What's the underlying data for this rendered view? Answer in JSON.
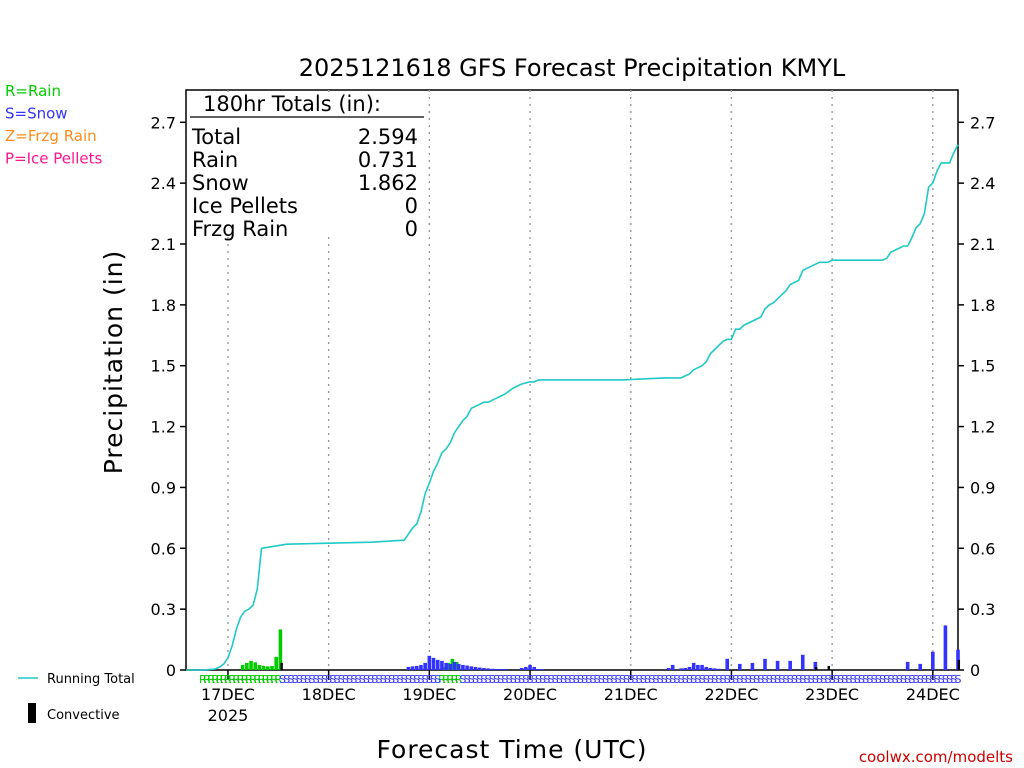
{
  "chart_data": {
    "type": "bar+line",
    "title": "2025121618 GFS Forecast Precipitation KMYL",
    "xlabel": "Forecast Time (UTC)",
    "ylabel": "Precipitation (in)",
    "ylim": [
      0,
      2.8
    ],
    "yticks": [
      0,
      0.3,
      0.6,
      0.9,
      1.2,
      1.5,
      1.8,
      2.1,
      2.4,
      2.7
    ],
    "ytick_labels": [
      "0",
      "0.3",
      "0.6",
      "0.9",
      "1.2",
      "1.5",
      "1.8",
      "2.1",
      "2.4",
      "2.7"
    ],
    "x_range_hours": [
      -4,
      180
    ],
    "x_ticks": [
      {
        "hour": 6,
        "label": "17DEC"
      },
      {
        "hour": 30,
        "label": "18DEC"
      },
      {
        "hour": 54,
        "label": "19DEC"
      },
      {
        "hour": 78,
        "label": "20DEC"
      },
      {
        "hour": 102,
        "label": "21DEC"
      },
      {
        "hour": 126,
        "label": "22DEC"
      },
      {
        "hour": 150,
        "label": "23DEC"
      },
      {
        "hour": 174,
        "label": "24DEC"
      }
    ],
    "year_label": "2025",
    "legend_types": [
      {
        "label": "R=Rain",
        "color": "#00cc00"
      },
      {
        "label": "S=Snow",
        "color": "#3333ff"
      },
      {
        "label": "Z=Frzg Rain",
        "color": "#ff8c1a"
      },
      {
        "label": "P=Ice Pellets",
        "color": "#ff1493"
      }
    ],
    "legend_series": [
      {
        "label": "Running Total",
        "color": "#20c8c8"
      },
      {
        "label": "Convective",
        "color": "#000000"
      }
    ],
    "totals": {
      "header": "180hr Totals (in):",
      "rows": [
        {
          "label": "Total",
          "value": "2.594"
        },
        {
          "label": "Rain",
          "value": "0.731"
        },
        {
          "label": "Snow",
          "value": "1.862"
        },
        {
          "label": "Ice Pellets",
          "value": "0"
        },
        {
          "label": "Frzg Rain",
          "value": "0"
        }
      ]
    },
    "running_total": {
      "color": "#20c8c8",
      "hours": [
        -4,
        0,
        3,
        4,
        5,
        6,
        7,
        8,
        9,
        10,
        11,
        12,
        13,
        14,
        20,
        30,
        40,
        48,
        50,
        51,
        52,
        53,
        54,
        55,
        56,
        57,
        58,
        59,
        60,
        61,
        62,
        63,
        64,
        65,
        66,
        67,
        68,
        69,
        70,
        71,
        72,
        74,
        76,
        78,
        79,
        80,
        82,
        90,
        100,
        110,
        114,
        116,
        117,
        118,
        119,
        120,
        121,
        122,
        123,
        124,
        125,
        126,
        127,
        128,
        129,
        130,
        131,
        132,
        133,
        134,
        135,
        136,
        137,
        138,
        139,
        140,
        141,
        142,
        143,
        144,
        145,
        146,
        147,
        148,
        149,
        150,
        152,
        155,
        160,
        162,
        163,
        164,
        165,
        166,
        167,
        168,
        169,
        170,
        171,
        172,
        173,
        174,
        175,
        176,
        177,
        178,
        179,
        180
      ],
      "values": [
        0.0,
        0.0,
        0.005,
        0.015,
        0.03,
        0.06,
        0.12,
        0.2,
        0.26,
        0.29,
        0.3,
        0.32,
        0.4,
        0.6,
        0.62,
        0.625,
        0.63,
        0.64,
        0.7,
        0.72,
        0.78,
        0.87,
        0.92,
        0.98,
        1.02,
        1.07,
        1.09,
        1.12,
        1.17,
        1.2,
        1.23,
        1.25,
        1.29,
        1.3,
        1.31,
        1.32,
        1.32,
        1.33,
        1.34,
        1.35,
        1.36,
        1.39,
        1.41,
        1.42,
        1.42,
        1.43,
        1.43,
        1.43,
        1.43,
        1.44,
        1.44,
        1.46,
        1.48,
        1.49,
        1.5,
        1.52,
        1.56,
        1.58,
        1.6,
        1.62,
        1.63,
        1.63,
        1.68,
        1.68,
        1.7,
        1.71,
        1.72,
        1.73,
        1.74,
        1.78,
        1.8,
        1.81,
        1.83,
        1.85,
        1.87,
        1.9,
        1.91,
        1.92,
        1.97,
        1.98,
        1.99,
        2.0,
        2.01,
        2.01,
        2.01,
        2.02,
        2.02,
        2.02,
        2.02,
        2.02,
        2.03,
        2.06,
        2.07,
        2.08,
        2.09,
        2.09,
        2.13,
        2.18,
        2.2,
        2.25,
        2.38,
        2.4,
        2.46,
        2.5,
        2.5,
        2.5,
        2.55,
        2.59
      ]
    },
    "rain_bars": {
      "color": "#00cc00",
      "hours": [
        9.5,
        10.5,
        11.5,
        12.5,
        13.5,
        14.5,
        15.5,
        16.5,
        17.5,
        18.5,
        57.5,
        58.5,
        59.5,
        60.5
      ],
      "values": [
        0.025,
        0.035,
        0.045,
        0.038,
        0.025,
        0.02,
        0.018,
        0.02,
        0.065,
        0.2,
        0.015,
        0.035,
        0.055,
        0.04
      ]
    },
    "snow_bars": {
      "color": "#3333ff",
      "hours": [
        49,
        50,
        51,
        52,
        53,
        54,
        55,
        56,
        57,
        58,
        59,
        60,
        61,
        62,
        63,
        64,
        65,
        66,
        67,
        68,
        69,
        70,
        71,
        72,
        76,
        77,
        78,
        79,
        80,
        81,
        111,
        112,
        114,
        115,
        116,
        117,
        118,
        119,
        120,
        121,
        122,
        123,
        125,
        128,
        131,
        134,
        137,
        140,
        143,
        146,
        168,
        171,
        174,
        177,
        180
      ],
      "values": [
        0.015,
        0.018,
        0.02,
        0.025,
        0.035,
        0.07,
        0.06,
        0.05,
        0.045,
        0.035,
        0.03,
        0.04,
        0.03,
        0.025,
        0.022,
        0.018,
        0.015,
        0.012,
        0.01,
        0.008,
        0.006,
        0.005,
        0.005,
        0.005,
        0.01,
        0.015,
        0.025,
        0.015,
        0.005,
        0.004,
        0.01,
        0.025,
        0.008,
        0.01,
        0.015,
        0.035,
        0.025,
        0.025,
        0.015,
        0.01,
        0.008,
        0.006,
        0.055,
        0.03,
        0.035,
        0.055,
        0.045,
        0.045,
        0.075,
        0.04,
        0.04,
        0.03,
        0.09,
        0.22,
        0.1
      ]
    },
    "convective_bars": {
      "color": "#000000",
      "hours": [
        18.8,
        146.2,
        149.2,
        180.2
      ],
      "values": [
        0.035,
        0.015,
        0.02,
        0.05
      ]
    },
    "type_markers": {
      "rain_label": "R",
      "snow_label": "S",
      "rain_ranges": [
        [
          0,
          18
        ],
        [
          57,
          61
        ]
      ],
      "snow_ranges": [
        [
          19,
          56
        ],
        [
          62,
          180
        ]
      ],
      "rain_color": "#00cc00",
      "snow_color": "#3333ff"
    },
    "watermark": "coolwx.com/modelts"
  }
}
